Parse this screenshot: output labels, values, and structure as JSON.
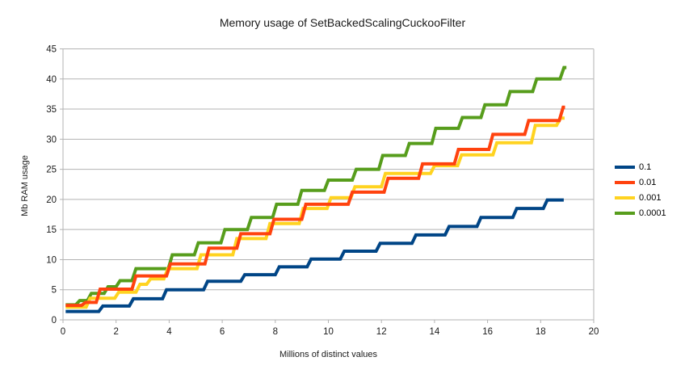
{
  "chart_data": {
    "type": "line",
    "subtype": "step",
    "title": "Memory usage of SetBackedScalingCuckooFilter",
    "xlabel": "Millions of distinct values",
    "ylabel": "Mb RAM usage",
    "xlim": [
      0,
      20
    ],
    "ylim": [
      0,
      45
    ],
    "xticks": [
      0,
      2,
      4,
      6,
      8,
      10,
      12,
      14,
      16,
      18,
      20
    ],
    "yticks": [
      0,
      5,
      10,
      15,
      20,
      25,
      30,
      35,
      40,
      45
    ],
    "grid": "horizontal-only",
    "legend_position": "right",
    "z_order": "first series drawn on top",
    "step_ramp_width": 0.15,
    "series": [
      {
        "name": "0.1",
        "color": "#004586",
        "start_x": 0.1,
        "end_x": 18.87,
        "levels": [
          1.4,
          2.3,
          3.5,
          5.0,
          6.4,
          7.5,
          8.8,
          10.1,
          11.4,
          12.7,
          14.1,
          15.5,
          17.0,
          18.5,
          19.9
        ],
        "step_x": [
          1.35,
          2.5,
          3.75,
          5.3,
          6.7,
          8.0,
          9.2,
          10.45,
          11.8,
          13.15,
          14.4,
          15.6,
          16.95,
          18.1
        ]
      },
      {
        "name": "0.01",
        "color": "#ff420e",
        "start_x": 0.1,
        "end_x": 18.92,
        "levels": [
          2.4,
          2.9,
          5.1,
          7.3,
          9.3,
          11.9,
          14.3,
          16.7,
          19.2,
          21.2,
          23.5,
          25.9,
          28.3,
          30.8,
          33.1,
          35.3
        ],
        "step_x": [
          0.7,
          1.25,
          2.6,
          3.9,
          5.35,
          6.55,
          7.8,
          9.0,
          10.75,
          12.1,
          13.4,
          14.75,
          16.05,
          17.4,
          18.7
        ]
      },
      {
        "name": "0.001",
        "color": "#ffd320",
        "start_x": 0.1,
        "end_x": 18.9,
        "levels": [
          2.1,
          3.6,
          4.6,
          5.9,
          6.8,
          8.5,
          10.8,
          13.5,
          16.0,
          18.5,
          20.3,
          22.1,
          24.3,
          25.6,
          27.4,
          29.4,
          32.3,
          33.5
        ],
        "step_x": [
          0.87,
          1.95,
          2.75,
          3.15,
          3.8,
          5.05,
          6.4,
          7.65,
          8.9,
          9.95,
          10.85,
          12.0,
          13.85,
          14.87,
          16.2,
          17.65,
          18.6
        ]
      },
      {
        "name": "0.0001",
        "color": "#579d1c",
        "start_x": 0.1,
        "end_x": 18.97,
        "levels": [
          2.5,
          3.2,
          4.4,
          5.5,
          6.5,
          8.5,
          10.8,
          12.8,
          15.0,
          17.0,
          19.2,
          21.5,
          23.2,
          25.0,
          27.3,
          29.3,
          31.8,
          33.6,
          35.7,
          37.9,
          40.0,
          41.9
        ],
        "step_x": [
          0.48,
          0.92,
          1.55,
          2.0,
          2.6,
          3.97,
          4.95,
          5.95,
          6.95,
          7.9,
          8.85,
          9.85,
          10.9,
          11.9,
          12.9,
          13.9,
          14.9,
          15.75,
          16.7,
          17.7,
          18.73
        ]
      }
    ],
    "colors": {
      "background": "#ffffff",
      "gridline": "#b3b3b3",
      "axis": "#b3b3b3",
      "tick_text": "#1a1a1a"
    }
  }
}
